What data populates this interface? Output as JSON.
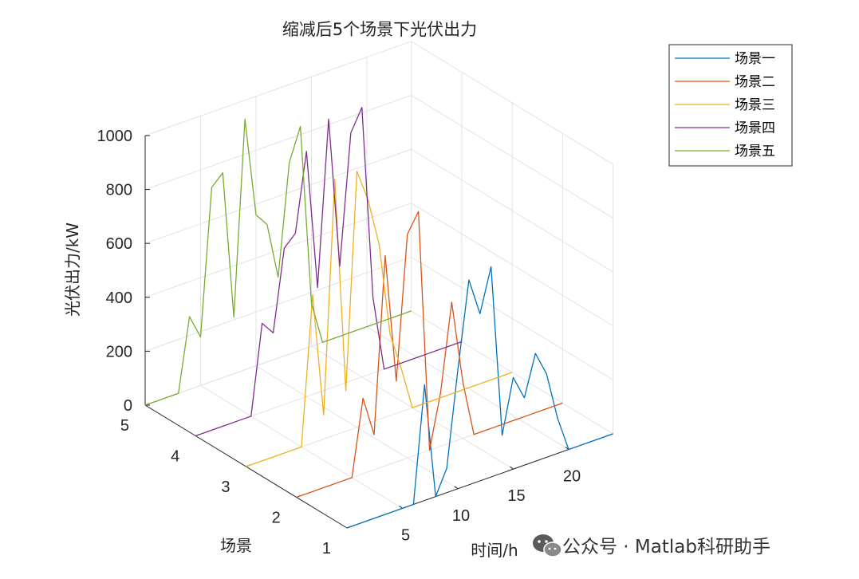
{
  "chart_data": {
    "type": "line3d",
    "title": "缩减后5个场景下光伏出力",
    "xlabel": "时间/h",
    "ylabel": "场景",
    "zlabel": "光伏出力/kW",
    "xlim": [
      0,
      24
    ],
    "ylim": [
      1,
      5
    ],
    "zlim": [
      0,
      1000
    ],
    "xticks": [
      "5",
      "10",
      "15",
      "20"
    ],
    "yticks": [
      "1",
      "2",
      "3",
      "4",
      "5"
    ],
    "zticks": [
      "0",
      "200",
      "400",
      "600",
      "800",
      "1000"
    ],
    "grid": true,
    "legend_position": "top-right",
    "series": [
      {
        "name": "场景一",
        "color": "#0072BD",
        "scene": 1,
        "values": [
          0,
          0,
          0,
          0,
          0,
          0,
          430,
          0,
          90,
          440,
          760,
          620,
          780,
          140,
          340,
          250,
          400,
          310,
          130,
          0,
          0,
          0,
          0,
          0
        ]
      },
      {
        "name": "场景二",
        "color": "#D95319",
        "scene": 2,
        "values": [
          0,
          0,
          0,
          0,
          0,
          280,
          130,
          780,
          300,
          830,
          900,
          0,
          200,
          520,
          210,
          0,
          0,
          0,
          0,
          0,
          0,
          0,
          0,
          0
        ]
      },
      {
        "name": "场景三",
        "color": "#EDB120",
        "scene": 3,
        "values": [
          0,
          0,
          0,
          0,
          0,
          550,
          90,
          950,
          150,
          950,
          830,
          650,
          300,
          160,
          0,
          0,
          0,
          0,
          0,
          0,
          0,
          0,
          0,
          0
        ]
      },
      {
        "name": "场景四",
        "color": "#7E2F8E",
        "scene": 4,
        "values": [
          0,
          0,
          0,
          0,
          0,
          330,
          280,
          580,
          620,
          910,
          390,
          1000,
          440,
          920,
          1000,
          280,
          0,
          0,
          0,
          0,
          0,
          0,
          0,
          0
        ]
      },
      {
        "name": "场景五",
        "color": "#77AC30",
        "scene": 5,
        "values": [
          0,
          0,
          0,
          270,
          180,
          720,
          760,
          210,
          930,
          560,
          510,
          300,
          710,
          830,
          160,
          0,
          0,
          0,
          0,
          0,
          0,
          0,
          0,
          0
        ]
      }
    ]
  },
  "watermark": {
    "text": "公众号 · Matlab科研助手",
    "icon": "wechat-icon"
  }
}
